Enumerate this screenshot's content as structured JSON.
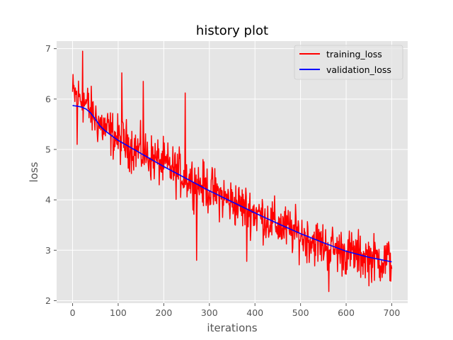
{
  "chart_data": {
    "type": "line",
    "title": "history plot",
    "xlabel": "iterations",
    "ylabel": "loss",
    "xlim": [
      -35,
      735
    ],
    "ylim": [
      1.95,
      7.15
    ],
    "xticks": [
      0,
      100,
      200,
      300,
      400,
      500,
      600,
      700
    ],
    "yticks": [
      2,
      3,
      4,
      5,
      6,
      7
    ],
    "legend_position": "top-right",
    "grid": true,
    "series": [
      {
        "name": "training_loss",
        "color": "#ff0000",
        "note": "noisy per-iteration training loss, 0-700",
        "trend_x": [
          0,
          10,
          20,
          30,
          40,
          60,
          80,
          100,
          150,
          200,
          250,
          300,
          350,
          400,
          450,
          500,
          550,
          600,
          650,
          700
        ],
        "trend_y": [
          6.1,
          6.05,
          6.0,
          5.9,
          5.75,
          5.5,
          5.35,
          5.2,
          4.95,
          4.7,
          4.45,
          4.2,
          3.95,
          3.75,
          3.5,
          3.3,
          3.1,
          2.95,
          2.85,
          2.78
        ],
        "noise_amplitude": 0.42,
        "extremes": [
          {
            "x": 22,
            "y": 6.95
          },
          {
            "x": 562,
            "y": 2.18
          },
          {
            "x": 247,
            "y": 6.12
          },
          {
            "x": 108,
            "y": 6.52
          },
          {
            "x": 155,
            "y": 6.35
          },
          {
            "x": 272,
            "y": 2.8
          },
          {
            "x": 382,
            "y": 2.78
          },
          {
            "x": 10,
            "y": 5.1
          }
        ]
      },
      {
        "name": "validation_loss",
        "color": "#0000ff",
        "x": [
          0,
          10,
          20,
          30,
          40,
          50,
          60,
          70,
          80,
          100,
          150,
          200,
          250,
          300,
          350,
          400,
          450,
          500,
          550,
          600,
          650,
          700
        ],
        "y": [
          5.87,
          5.86,
          5.84,
          5.8,
          5.72,
          5.6,
          5.47,
          5.38,
          5.31,
          5.18,
          4.92,
          4.66,
          4.42,
          4.18,
          3.96,
          3.74,
          3.53,
          3.33,
          3.15,
          2.98,
          2.86,
          2.77
        ]
      }
    ]
  }
}
